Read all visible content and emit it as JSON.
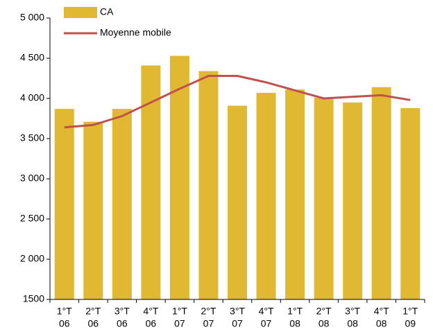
{
  "chart_data": {
    "type": "bar_line",
    "categories": [
      [
        "1°T",
        "06"
      ],
      [
        "2°T",
        "06"
      ],
      [
        "3°T",
        "06"
      ],
      [
        "4°T",
        "06"
      ],
      [
        "1°T",
        "07"
      ],
      [
        "2°T",
        "07"
      ],
      [
        "3°T",
        "07"
      ],
      [
        "4°T",
        "07"
      ],
      [
        "1°T",
        "08"
      ],
      [
        "2°T",
        "08"
      ],
      [
        "3°T",
        "08"
      ],
      [
        "4°T",
        "08"
      ],
      [
        "1°T",
        "09"
      ]
    ],
    "series": [
      {
        "name": "CA",
        "type": "bar",
        "color": "#E1B832",
        "values": [
          3870,
          3710,
          3870,
          4410,
          4530,
          4340,
          3910,
          4070,
          4110,
          4010,
          3950,
          4140,
          3880
        ]
      },
      {
        "name": "Moyenne mobile",
        "type": "line",
        "color": "#C0504D",
        "values": [
          3640,
          3670,
          3780,
          3950,
          4120,
          4280,
          4280,
          4200,
          4100,
          4000,
          4020,
          4040,
          3980
        ]
      }
    ],
    "ylim": [
      1500,
      5000
    ],
    "yticks": [
      1500,
      {
        "value": 2000,
        "label": "2 000"
      },
      {
        "value": 2500,
        "label": "2 500"
      },
      {
        "value": 3000,
        "label": "3 000"
      },
      {
        "value": 3500,
        "label": "3 500"
      },
      {
        "value": 4000,
        "label": "4 000"
      },
      {
        "value": 4500,
        "label": "4 500"
      },
      {
        "value": 5000,
        "label": "5 000"
      }
    ],
    "legend": "top-left"
  }
}
